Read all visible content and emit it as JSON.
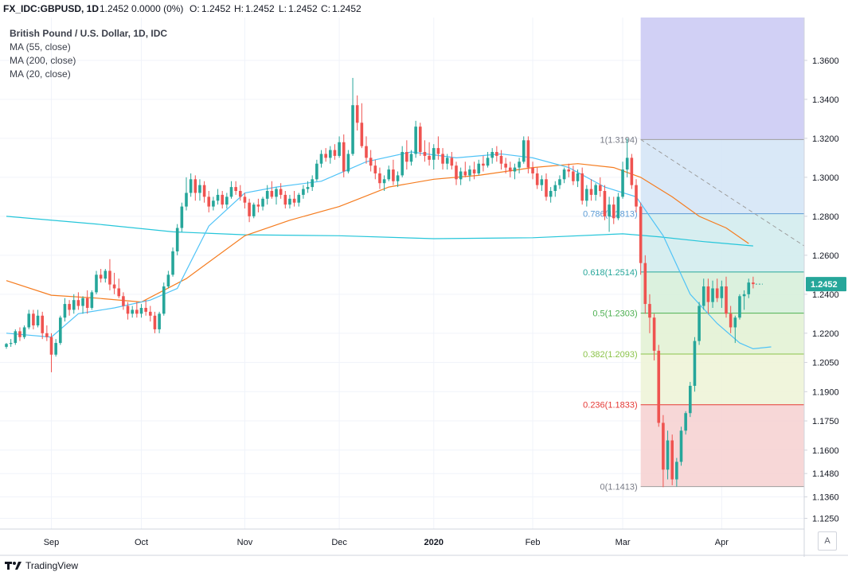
{
  "header": {
    "symbol": "FX_IDC:GBPUSD, 1D",
    "quote": "1.2452 0.0000 (0%)",
    "o_label": "O:",
    "o_value": "1.2452",
    "h_label": "H:",
    "h_value": "1.2452",
    "l_label": "L:",
    "l_value": "1.2452",
    "c_label": "C:",
    "c_value": "1.2452"
  },
  "legend": {
    "title": "British Pound / U.S. Dollar, 1D, IDC",
    "ma55": "MA (55, close)",
    "ma200": "MA (200, close)",
    "ma20": "MA (20, close)"
  },
  "footer": {
    "brand": "TradingView",
    "auto_button": "A"
  },
  "chart_data": {
    "type": "candlestick",
    "title": "British Pound / U.S. Dollar, 1D, IDC",
    "ylim": [
      1.1195,
      1.382
    ],
    "y_ticks": [
      "1.3600",
      "1.3400",
      "1.3200",
      "1.3000",
      "1.2800",
      "1.2600",
      "1.2400",
      "1.2200",
      "1.2050",
      "1.1900",
      "1.1750",
      "1.1600",
      "1.1480",
      "1.1360",
      "1.1250"
    ],
    "x_ticks": [
      {
        "label": "Sep",
        "i": 10
      },
      {
        "label": "Oct",
        "i": 30
      },
      {
        "label": "Nov",
        "i": 53
      },
      {
        "label": "Dec",
        "i": 74
      },
      {
        "label": "2020",
        "i": 95
      },
      {
        "label": "Feb",
        "i": 117
      },
      {
        "label": "Mar",
        "i": 137
      },
      {
        "label": "Apr",
        "i": 159
      }
    ],
    "n_slots": 177,
    "last_price": "1.2452",
    "last_price_value": 1.2452,
    "colors": {
      "up": "#26a69a",
      "down": "#ef5350",
      "ma55": "#f57c1f",
      "ma200": "#26c6da",
      "ma20": "#4fc3f7",
      "fib_high": "#9e9e9e",
      "fib_low": "#9e9e9e"
    },
    "fib": {
      "x_start_i": 141,
      "x_end_i": 177,
      "top_value": 1.382,
      "levels": [
        {
          "label": "1(1.3194)",
          "value": 1.3194,
          "line": "#9e9e9e",
          "fill": "#e0e0e0",
          "text": "#787b86"
        },
        {
          "label": "0.786(1.2813)",
          "value": 1.2813,
          "line": "#5b9bd5",
          "fill": "#d5e5f6",
          "text": "#5b9bd5"
        },
        {
          "label": "0.618(1.2514)",
          "value": 1.2514,
          "line": "#26a69a",
          "fill": "#d3ecee",
          "text": "#26a69a"
        },
        {
          "label": "0.5(1.2303)",
          "value": 1.2303,
          "line": "#4caf50",
          "fill": "#d7f0da",
          "text": "#4caf50"
        },
        {
          "label": "0.382(1.2093)",
          "value": 1.2093,
          "line": "#8bc34a",
          "fill": "#e3f2d5",
          "text": "#8bc34a"
        },
        {
          "label": "0.236(1.1833)",
          "value": 1.1833,
          "line": "#e53935",
          "fill": "#eef4d8",
          "text": "#e53935"
        },
        {
          "label": "0(1.1413)",
          "value": 1.1413,
          "line": "#9e9e9e",
          "fill": "#f6d3d3",
          "text": "#787b86"
        }
      ],
      "top_fill": "#d1d0f5"
    },
    "trendline": {
      "from_i": 141,
      "from_v": 1.3194,
      "to_i": 176,
      "to_v": 1.2647
    },
    "ma55": [
      [
        0,
        1.247
      ],
      [
        10,
        1.2395
      ],
      [
        20,
        1.238
      ],
      [
        30,
        1.236
      ],
      [
        40,
        1.248
      ],
      [
        53,
        1.27
      ],
      [
        63,
        1.278
      ],
      [
        74,
        1.285
      ],
      [
        85,
        1.295
      ],
      [
        95,
        1.299
      ],
      [
        105,
        1.301
      ],
      [
        117,
        1.305
      ],
      [
        127,
        1.307
      ],
      [
        135,
        1.305
      ],
      [
        141,
        1.3
      ],
      [
        148,
        1.29
      ],
      [
        154,
        1.28
      ],
      [
        160,
        1.274
      ],
      [
        165,
        1.266
      ]
    ],
    "ma200": [
      [
        0,
        1.28
      ],
      [
        20,
        1.276
      ],
      [
        37,
        1.272
      ],
      [
        53,
        1.2705
      ],
      [
        74,
        1.27
      ],
      [
        95,
        1.2685
      ],
      [
        117,
        1.269
      ],
      [
        137,
        1.271
      ],
      [
        145,
        1.2695
      ],
      [
        155,
        1.267
      ],
      [
        166,
        1.2648
      ]
    ],
    "ma20": [
      [
        0,
        1.22
      ],
      [
        10,
        1.218
      ],
      [
        16,
        1.23
      ],
      [
        24,
        1.233
      ],
      [
        32,
        1.237
      ],
      [
        38,
        1.243
      ],
      [
        45,
        1.275
      ],
      [
        53,
        1.292
      ],
      [
        60,
        1.295
      ],
      [
        70,
        1.298
      ],
      [
        80,
        1.308
      ],
      [
        90,
        1.313
      ],
      [
        100,
        1.31
      ],
      [
        110,
        1.312
      ],
      [
        117,
        1.31
      ],
      [
        125,
        1.305
      ],
      [
        133,
        1.295
      ],
      [
        140,
        1.29
      ],
      [
        146,
        1.27
      ],
      [
        152,
        1.24
      ],
      [
        158,
        1.225
      ],
      [
        163,
        1.215
      ],
      [
        166,
        1.212
      ],
      [
        170,
        1.213
      ]
    ],
    "candles": [
      [
        1.213,
        1.215,
        1.212,
        1.2145
      ],
      [
        1.2145,
        1.217,
        1.213,
        1.215
      ],
      [
        1.215,
        1.222,
        1.214,
        1.221
      ],
      [
        1.221,
        1.223,
        1.216,
        1.218
      ],
      [
        1.218,
        1.224,
        1.217,
        1.223
      ],
      [
        1.223,
        1.232,
        1.222,
        1.23
      ],
      [
        1.23,
        1.232,
        1.222,
        1.224
      ],
      [
        1.224,
        1.232,
        1.223,
        1.229
      ],
      [
        1.229,
        1.231,
        1.217,
        1.22
      ],
      [
        1.22,
        1.224,
        1.216,
        1.218
      ],
      [
        1.218,
        1.22,
        1.2,
        1.209
      ],
      [
        1.209,
        1.217,
        1.208,
        1.215
      ],
      [
        1.215,
        1.229,
        1.214,
        1.228
      ],
      [
        1.228,
        1.238,
        1.226,
        1.235
      ],
      [
        1.235,
        1.237,
        1.229,
        1.232
      ],
      [
        1.232,
        1.24,
        1.23,
        1.237
      ],
      [
        1.237,
        1.241,
        1.232,
        1.234
      ],
      [
        1.234,
        1.239,
        1.23,
        1.238
      ],
      [
        1.238,
        1.242,
        1.23,
        1.233
      ],
      [
        1.233,
        1.242,
        1.232,
        1.241
      ],
      [
        1.241,
        1.252,
        1.24,
        1.25
      ],
      [
        1.25,
        1.253,
        1.246,
        1.248
      ],
      [
        1.248,
        1.253,
        1.246,
        1.252
      ],
      [
        1.252,
        1.258,
        1.242,
        1.245
      ],
      [
        1.245,
        1.251,
        1.24,
        1.243
      ],
      [
        1.243,
        1.248,
        1.238,
        1.239
      ],
      [
        1.239,
        1.241,
        1.232,
        1.234
      ],
      [
        1.234,
        1.236,
        1.227,
        1.23
      ],
      [
        1.23,
        1.234,
        1.228,
        1.232
      ],
      [
        1.232,
        1.236,
        1.228,
        1.23
      ],
      [
        1.23,
        1.235,
        1.228,
        1.233
      ],
      [
        1.233,
        1.237,
        1.229,
        1.231
      ],
      [
        1.231,
        1.234,
        1.226,
        1.229
      ],
      [
        1.229,
        1.231,
        1.22,
        1.222
      ],
      [
        1.222,
        1.231,
        1.22,
        1.23
      ],
      [
        1.23,
        1.246,
        1.229,
        1.244
      ],
      [
        1.244,
        1.252,
        1.243,
        1.25
      ],
      [
        1.25,
        1.264,
        1.249,
        1.262
      ],
      [
        1.262,
        1.276,
        1.26,
        1.274
      ],
      [
        1.274,
        1.287,
        1.272,
        1.285
      ],
      [
        1.285,
        1.3,
        1.283,
        1.292
      ],
      [
        1.292,
        1.302,
        1.29,
        1.299
      ],
      [
        1.299,
        1.301,
        1.288,
        1.292
      ],
      [
        1.292,
        1.299,
        1.288,
        1.296
      ],
      [
        1.296,
        1.298,
        1.287,
        1.29
      ],
      [
        1.29,
        1.293,
        1.282,
        1.285
      ],
      [
        1.285,
        1.29,
        1.283,
        1.288
      ],
      [
        1.288,
        1.294,
        1.286,
        1.291
      ],
      [
        1.291,
        1.293,
        1.284,
        1.286
      ],
      [
        1.286,
        1.292,
        1.284,
        1.29
      ],
      [
        1.29,
        1.298,
        1.289,
        1.295
      ],
      [
        1.295,
        1.298,
        1.291,
        1.293
      ],
      [
        1.293,
        1.296,
        1.288,
        1.29
      ],
      [
        1.29,
        1.292,
        1.284,
        1.287
      ],
      [
        1.287,
        1.289,
        1.277,
        1.28
      ],
      [
        1.28,
        1.287,
        1.279,
        1.286
      ],
      [
        1.286,
        1.289,
        1.282,
        1.285
      ],
      [
        1.285,
        1.29,
        1.283,
        1.289
      ],
      [
        1.289,
        1.296,
        1.286,
        1.293
      ],
      [
        1.293,
        1.298,
        1.289,
        1.29
      ],
      [
        1.29,
        1.295,
        1.286,
        1.294
      ],
      [
        1.294,
        1.297,
        1.289,
        1.291
      ],
      [
        1.291,
        1.293,
        1.284,
        1.286
      ],
      [
        1.286,
        1.291,
        1.284,
        1.289
      ],
      [
        1.289,
        1.293,
        1.285,
        1.287
      ],
      [
        1.287,
        1.292,
        1.285,
        1.291
      ],
      [
        1.291,
        1.296,
        1.289,
        1.294
      ],
      [
        1.294,
        1.298,
        1.292,
        1.295
      ],
      [
        1.295,
        1.301,
        1.293,
        1.299
      ],
      [
        1.299,
        1.309,
        1.298,
        1.307
      ],
      [
        1.307,
        1.314,
        1.305,
        1.312
      ],
      [
        1.312,
        1.315,
        1.308,
        1.31
      ],
      [
        1.31,
        1.316,
        1.307,
        1.314
      ],
      [
        1.314,
        1.317,
        1.309,
        1.311
      ],
      [
        1.311,
        1.321,
        1.31,
        1.318
      ],
      [
        1.318,
        1.322,
        1.3,
        1.303
      ],
      [
        1.303,
        1.314,
        1.302,
        1.312
      ],
      [
        1.312,
        1.351,
        1.311,
        1.337
      ],
      [
        1.337,
        1.342,
        1.324,
        1.328
      ],
      [
        1.328,
        1.338,
        1.315,
        1.316
      ],
      [
        1.316,
        1.321,
        1.307,
        1.31
      ],
      [
        1.31,
        1.314,
        1.303,
        1.306
      ],
      [
        1.306,
        1.309,
        1.299,
        1.302
      ],
      [
        1.302,
        1.305,
        1.294,
        1.297
      ],
      [
        1.297,
        1.301,
        1.293,
        1.299
      ],
      [
        1.299,
        1.306,
        1.298,
        1.304
      ],
      [
        1.304,
        1.309,
        1.296,
        1.298
      ],
      [
        1.298,
        1.303,
        1.295,
        1.301
      ],
      [
        1.301,
        1.316,
        1.3,
        1.313
      ],
      [
        1.313,
        1.319,
        1.304,
        1.308
      ],
      [
        1.308,
        1.314,
        1.306,
        1.312
      ],
      [
        1.312,
        1.329,
        1.31,
        1.326
      ],
      [
        1.326,
        1.328,
        1.311,
        1.313
      ],
      [
        1.313,
        1.319,
        1.308,
        1.311
      ],
      [
        1.311,
        1.318,
        1.306,
        1.309
      ],
      [
        1.309,
        1.317,
        1.304,
        1.315
      ],
      [
        1.315,
        1.321,
        1.309,
        1.312
      ],
      [
        1.312,
        1.315,
        1.304,
        1.307
      ],
      [
        1.307,
        1.312,
        1.304,
        1.31
      ],
      [
        1.31,
        1.313,
        1.304,
        1.306
      ],
      [
        1.306,
        1.308,
        1.296,
        1.299
      ],
      [
        1.299,
        1.305,
        1.296,
        1.303
      ],
      [
        1.303,
        1.308,
        1.3,
        1.301
      ],
      [
        1.301,
        1.306,
        1.298,
        1.304
      ],
      [
        1.304,
        1.308,
        1.299,
        1.302
      ],
      [
        1.302,
        1.309,
        1.301,
        1.307
      ],
      [
        1.307,
        1.311,
        1.303,
        1.306
      ],
      [
        1.306,
        1.313,
        1.305,
        1.31
      ],
      [
        1.31,
        1.315,
        1.307,
        1.313
      ],
      [
        1.313,
        1.316,
        1.308,
        1.311
      ],
      [
        1.311,
        1.314,
        1.304,
        1.307
      ],
      [
        1.307,
        1.31,
        1.302,
        1.305
      ],
      [
        1.305,
        1.308,
        1.3,
        1.303
      ],
      [
        1.303,
        1.307,
        1.299,
        1.305
      ],
      [
        1.305,
        1.31,
        1.302,
        1.308
      ],
      [
        1.308,
        1.321,
        1.307,
        1.319
      ],
      [
        1.319,
        1.321,
        1.302,
        1.305
      ],
      [
        1.305,
        1.308,
        1.299,
        1.302
      ],
      [
        1.302,
        1.305,
        1.294,
        1.296
      ],
      [
        1.296,
        1.301,
        1.293,
        1.299
      ],
      [
        1.299,
        1.302,
        1.288,
        1.29
      ],
      [
        1.29,
        1.295,
        1.287,
        1.293
      ],
      [
        1.293,
        1.298,
        1.29,
        1.296
      ],
      [
        1.296,
        1.301,
        1.294,
        1.299
      ],
      [
        1.299,
        1.305,
        1.297,
        1.304
      ],
      [
        1.304,
        1.307,
        1.3,
        1.303
      ],
      [
        1.303,
        1.306,
        1.296,
        1.298
      ],
      [
        1.298,
        1.304,
        1.295,
        1.302
      ],
      [
        1.302,
        1.305,
        1.286,
        1.288
      ],
      [
        1.288,
        1.296,
        1.285,
        1.294
      ],
      [
        1.294,
        1.299,
        1.288,
        1.291
      ],
      [
        1.291,
        1.297,
        1.288,
        1.296
      ],
      [
        1.296,
        1.3,
        1.29,
        1.293
      ],
      [
        1.293,
        1.296,
        1.278,
        1.28
      ],
      [
        1.28,
        1.29,
        1.272,
        1.286
      ],
      [
        1.286,
        1.29,
        1.276,
        1.279
      ],
      [
        1.279,
        1.292,
        1.278,
        1.29
      ],
      [
        1.29,
        1.308,
        1.289,
        1.304
      ],
      [
        1.304,
        1.32,
        1.3,
        1.31
      ],
      [
        1.31,
        1.312,
        1.294,
        1.296
      ],
      [
        1.296,
        1.299,
        1.282,
        1.285
      ],
      [
        1.285,
        1.287,
        1.25,
        1.256
      ],
      [
        1.256,
        1.26,
        1.23,
        1.235
      ],
      [
        1.235,
        1.24,
        1.22,
        1.228
      ],
      [
        1.228,
        1.23,
        1.206,
        1.211
      ],
      [
        1.211,
        1.214,
        1.172,
        1.174
      ],
      [
        1.174,
        1.178,
        1.141,
        1.15
      ],
      [
        1.15,
        1.17,
        1.145,
        1.165
      ],
      [
        1.165,
        1.168,
        1.142,
        1.145
      ],
      [
        1.145,
        1.156,
        1.1413,
        1.154
      ],
      [
        1.154,
        1.172,
        1.152,
        1.17
      ],
      [
        1.17,
        1.18,
        1.168,
        1.179
      ],
      [
        1.179,
        1.195,
        1.177,
        1.193
      ],
      [
        1.193,
        1.218,
        1.19,
        1.216
      ],
      [
        1.216,
        1.236,
        1.214,
        1.234
      ],
      [
        1.234,
        1.248,
        1.232,
        1.244
      ],
      [
        1.244,
        1.248,
        1.23,
        1.236
      ],
      [
        1.236,
        1.247,
        1.233,
        1.243
      ],
      [
        1.243,
        1.248,
        1.236,
        1.238
      ],
      [
        1.238,
        1.247,
        1.233,
        1.244
      ],
      [
        1.244,
        1.249,
        1.228,
        1.23
      ],
      [
        1.23,
        1.234,
        1.22,
        1.223
      ],
      [
        1.223,
        1.229,
        1.215,
        1.228
      ],
      [
        1.228,
        1.24,
        1.227,
        1.239
      ],
      [
        1.239,
        1.242,
        1.232,
        1.24
      ],
      [
        1.24,
        1.248,
        1.238,
        1.246
      ],
      [
        1.246,
        1.249,
        1.243,
        1.2452
      ]
    ]
  }
}
